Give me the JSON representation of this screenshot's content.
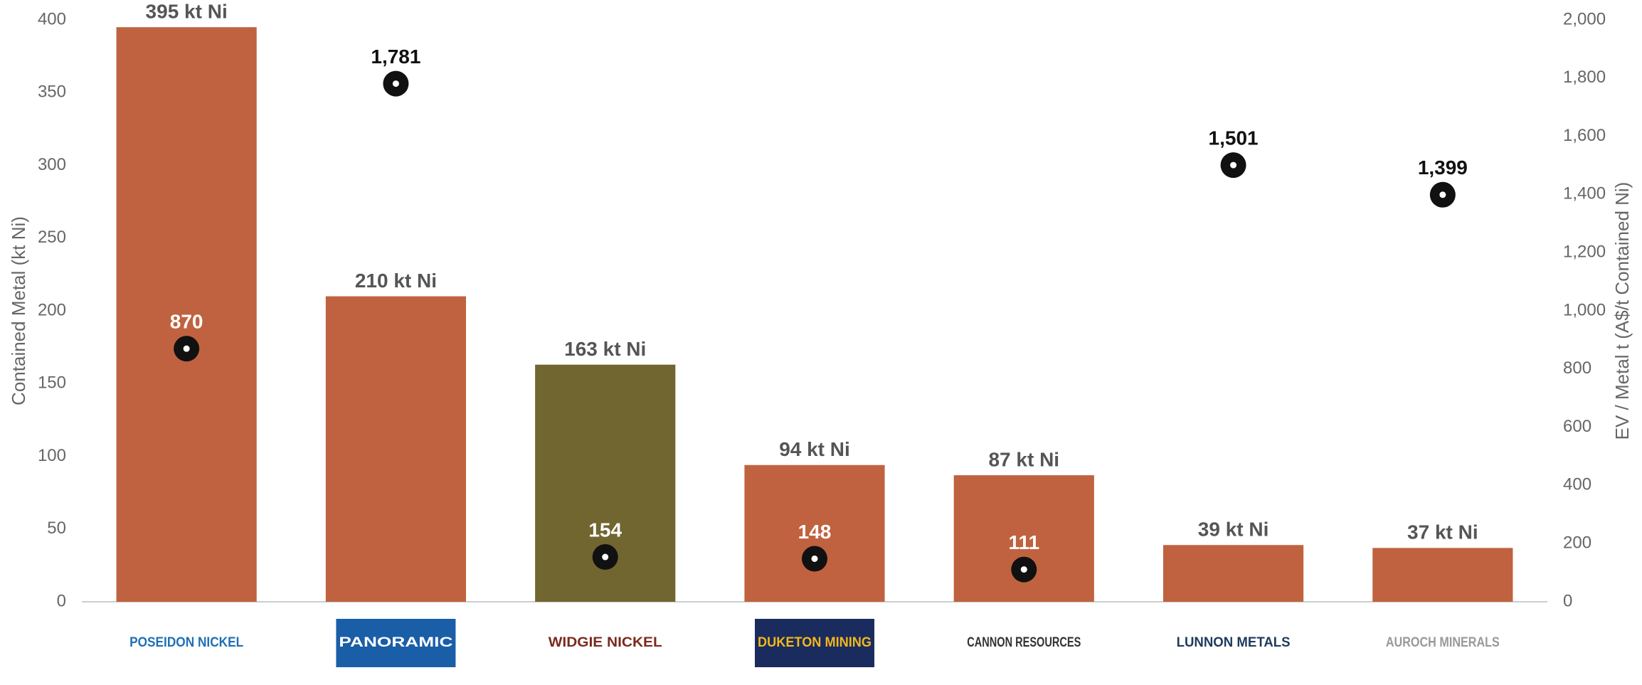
{
  "chart_data": {
    "type": "bar",
    "categories": [
      "POSEIDON NICKEL",
      "PANORAMIC",
      "WIDGIE NICKEL",
      "DUKETON MINING",
      "CANNON RESOURCES",
      "LUNNON METALS",
      "AUROCH MINERALS"
    ],
    "ylabel": "Contained Metal (kt Ni)",
    "y2label": "EV / Metal t (A$/t Contained Ni)",
    "ylim": [
      0,
      400
    ],
    "yticks": [
      0,
      50,
      100,
      150,
      200,
      250,
      300,
      350,
      400
    ],
    "y2lim": [
      0,
      2000
    ],
    "y2ticks": [
      0,
      200,
      400,
      600,
      800,
      {
        "value": 1000,
        "label": "1,000"
      },
      {
        "value": 1200,
        "label": "1,200"
      },
      {
        "value": 1400,
        "label": "1,400"
      },
      {
        "value": 1600,
        "label": "1,600"
      },
      {
        "value": 1800,
        "label": "1,800"
      },
      {
        "value": 2000,
        "label": "2,000"
      }
    ],
    "series": [
      {
        "name": "Contained Metal",
        "type": "bar",
        "colors": [
          "#c0623f",
          "#c0623f",
          "#716530",
          "#c0623f",
          "#c0623f",
          "#c0623f",
          "#c0623f"
        ],
        "values": [
          395,
          210,
          163,
          94,
          87,
          39,
          37
        ],
        "value_labels": [
          "395 kt Ni",
          "210 kt Ni",
          "163 kt Ni",
          "94 kt Ni",
          "87 kt Ni",
          "39 kt Ni",
          "37 kt Ni"
        ]
      },
      {
        "name": "EV / Metal t",
        "type": "scatter",
        "axis": "y2",
        "color": "#111111",
        "values": [
          870,
          1781,
          154,
          148,
          111,
          1501,
          1399
        ],
        "value_labels": [
          "870",
          "1,781",
          "154",
          "148",
          "111",
          "1,501",
          "1,399"
        ]
      }
    ]
  }
}
